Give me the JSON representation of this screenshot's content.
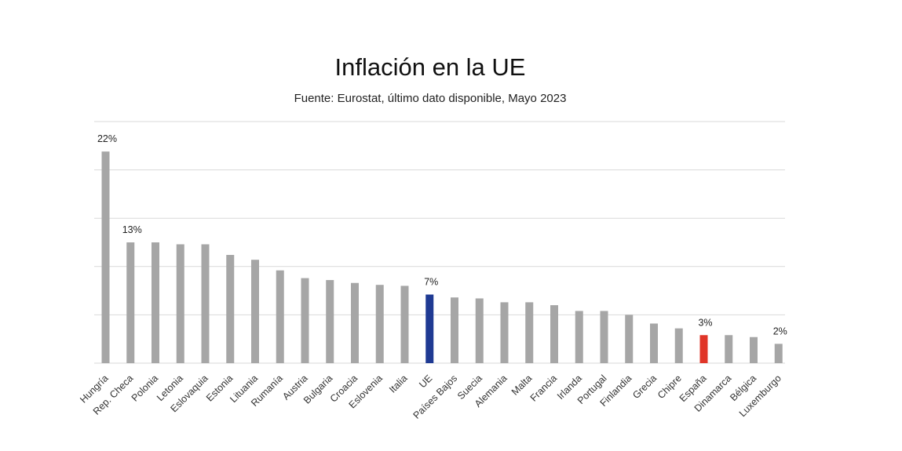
{
  "chart_data": {
    "type": "bar",
    "title": "Inflación en la UE",
    "subtitle": "Fuente: Eurostat, último dato disponible, Mayo 2023",
    "xlabel": "",
    "ylabel": "",
    "ylim": [
      0,
      25
    ],
    "grid": true,
    "unit": "%",
    "categories": [
      "Hungría",
      "Rep. Checa",
      "Polonia",
      "Letonia",
      "Eslovaquia",
      "Estonia",
      "Lituania",
      "Rumanía",
      "Austria",
      "Bulgaria",
      "Croacia",
      "Eslovenia",
      "Italia",
      "UE",
      "Países Bajos",
      "Suecia",
      "Alemania",
      "Malta",
      "Francia",
      "Irlanda",
      "Portugal",
      "Finlandia",
      "Grecia",
      "Chipre",
      "España",
      "Dinamarca",
      "Bélgica",
      "Luxemburgo"
    ],
    "values": [
      21.9,
      12.5,
      12.5,
      12.3,
      12.3,
      11.2,
      10.7,
      9.6,
      8.8,
      8.6,
      8.3,
      8.1,
      8.0,
      7.1,
      6.8,
      6.7,
      6.3,
      6.3,
      6.0,
      5.4,
      5.4,
      5.0,
      4.1,
      3.6,
      2.9,
      2.9,
      2.7,
      2.0
    ],
    "data_labels": [
      {
        "index": 0,
        "text": "22%"
      },
      {
        "index": 1,
        "text": "13%"
      },
      {
        "index": 13,
        "text": "7%"
      },
      {
        "index": 24,
        "text": "3%"
      },
      {
        "index": 27,
        "text": "2%"
      }
    ],
    "colors": {
      "default": "#a6a6a6",
      "highlight": {
        "13": "#1f3a93",
        "24": "#e03528"
      },
      "grid": "#d9d9d9"
    }
  }
}
